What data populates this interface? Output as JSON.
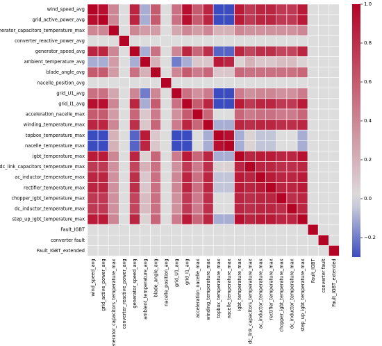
{
  "chart_data": {
    "type": "heatmap",
    "variables": [
      "wind_speed_avg",
      "grid_active_power_avg",
      "generator_capacitors_temperature_max",
      "converter_reactive_power_avg",
      "generator_speed_avg",
      "ambient_temperature_avg",
      "blade_angle_avg",
      "nacelle_position_avg",
      "grid_U1_avg",
      "grid_I1_avg",
      "acceleration_nacelle_max",
      "winding_temperature_max",
      "topbox_temperature_max",
      "nacelle_temperature_max",
      "igbt_temperature_max",
      "dc_link_capacitors_temperature_max",
      "ac_inductor_temperature_max",
      "rectifier_temperature_max",
      "chopper_igbt_temperature_max",
      "dc_inductor_temperature_max",
      "step_up_igbt_temperature_max",
      "Fault_IGBT",
      "converter fault",
      "Fault_IGBT_extended"
    ],
    "matrix": [
      [
        1.0,
        0.95,
        0.4,
        0.0,
        0.85,
        -0.1,
        0.6,
        0.0,
        0.5,
        0.95,
        0.6,
        0.85,
        -0.3,
        -0.3,
        0.9,
        0.75,
        0.85,
        0.85,
        0.75,
        0.75,
        0.9,
        0.0,
        0.0,
        0.0
      ],
      [
        0.95,
        1.0,
        0.4,
        0.0,
        0.85,
        -0.1,
        0.6,
        0.0,
        0.5,
        0.95,
        0.6,
        0.85,
        -0.3,
        -0.3,
        0.9,
        0.75,
        0.85,
        0.85,
        0.75,
        0.75,
        0.9,
        0.0,
        0.0,
        0.0
      ],
      [
        0.4,
        0.4,
        1.0,
        0.0,
        0.4,
        0.3,
        0.3,
        0.0,
        0.25,
        0.4,
        0.3,
        0.4,
        0.2,
        0.2,
        0.4,
        0.35,
        0.35,
        0.35,
        0.35,
        0.35,
        0.4,
        0.0,
        0.0,
        0.0
      ],
      [
        0.0,
        0.0,
        0.0,
        1.0,
        0.0,
        0.0,
        0.0,
        0.0,
        0.0,
        0.0,
        0.0,
        0.0,
        0.0,
        0.0,
        0.0,
        0.0,
        0.0,
        0.0,
        0.0,
        0.0,
        0.0,
        0.0,
        0.0,
        0.0
      ],
      [
        0.85,
        0.85,
        0.4,
        0.0,
        1.0,
        -0.1,
        0.5,
        0.0,
        0.4,
        0.85,
        0.55,
        0.8,
        -0.25,
        -0.25,
        0.85,
        0.7,
        0.8,
        0.8,
        0.7,
        0.7,
        0.85,
        0.0,
        0.0,
        0.0
      ],
      [
        -0.1,
        -0.1,
        0.3,
        0.0,
        -0.1,
        1.0,
        0.2,
        0.0,
        -0.2,
        -0.1,
        0.1,
        0.1,
        0.9,
        0.85,
        0.05,
        0.2,
        0.1,
        0.1,
        0.15,
        0.15,
        0.05,
        0.0,
        0.0,
        0.0
      ],
      [
        0.6,
        0.6,
        0.3,
        0.0,
        0.5,
        0.2,
        1.0,
        0.0,
        0.4,
        0.6,
        0.45,
        0.55,
        0.1,
        0.1,
        0.55,
        0.5,
        0.5,
        0.5,
        0.5,
        0.5,
        0.55,
        0.0,
        0.0,
        0.0
      ],
      [
        0.0,
        0.0,
        0.0,
        0.0,
        0.0,
        0.0,
        0.0,
        1.0,
        0.0,
        0.0,
        0.0,
        0.0,
        0.0,
        0.0,
        0.0,
        0.0,
        0.0,
        0.0,
        0.0,
        0.0,
        0.0,
        0.0,
        0.0,
        0.0
      ],
      [
        0.5,
        0.5,
        0.25,
        0.0,
        0.4,
        -0.2,
        0.4,
        0.0,
        1.0,
        0.5,
        0.35,
        0.45,
        -0.3,
        -0.3,
        0.45,
        0.35,
        0.4,
        0.4,
        0.35,
        0.35,
        0.45,
        0.0,
        0.0,
        0.0
      ],
      [
        0.95,
        0.95,
        0.4,
        0.0,
        0.85,
        -0.1,
        0.6,
        0.0,
        0.5,
        1.0,
        0.6,
        0.85,
        -0.3,
        -0.3,
        0.9,
        0.75,
        0.85,
        0.85,
        0.75,
        0.75,
        0.9,
        0.0,
        0.0,
        0.0
      ],
      [
        0.6,
        0.6,
        0.3,
        0.0,
        0.55,
        0.1,
        0.45,
        0.0,
        0.35,
        0.6,
        1.0,
        0.55,
        0.0,
        0.0,
        0.55,
        0.45,
        0.5,
        0.5,
        0.45,
        0.45,
        0.55,
        0.0,
        0.0,
        0.0
      ],
      [
        0.85,
        0.85,
        0.4,
        0.0,
        0.8,
        0.1,
        0.55,
        0.0,
        0.45,
        0.85,
        0.55,
        1.0,
        -0.1,
        -0.1,
        0.85,
        0.8,
        0.85,
        0.85,
        0.8,
        0.8,
        0.85,
        0.0,
        0.0,
        0.0
      ],
      [
        -0.3,
        -0.3,
        0.2,
        0.0,
        -0.25,
        0.9,
        0.1,
        0.0,
        -0.3,
        -0.3,
        0.0,
        -0.1,
        1.0,
        0.95,
        -0.1,
        0.05,
        -0.05,
        -0.05,
        0.0,
        0.0,
        -0.1,
        0.0,
        0.0,
        0.0
      ],
      [
        -0.3,
        -0.3,
        0.2,
        0.0,
        -0.25,
        0.85,
        0.1,
        0.0,
        -0.3,
        -0.3,
        0.0,
        -0.1,
        0.95,
        1.0,
        -0.1,
        0.05,
        -0.05,
        -0.05,
        0.0,
        0.0,
        -0.1,
        0.0,
        0.0,
        0.0
      ],
      [
        0.9,
        0.9,
        0.4,
        0.0,
        0.85,
        0.05,
        0.55,
        0.0,
        0.45,
        0.9,
        0.55,
        0.85,
        -0.1,
        -0.1,
        1.0,
        0.85,
        0.9,
        0.9,
        0.85,
        0.85,
        0.95,
        0.0,
        0.0,
        0.0
      ],
      [
        0.75,
        0.75,
        0.35,
        0.0,
        0.7,
        0.2,
        0.5,
        0.0,
        0.35,
        0.75,
        0.45,
        0.8,
        0.05,
        0.05,
        0.85,
        1.0,
        0.85,
        0.85,
        0.8,
        0.8,
        0.85,
        0.0,
        0.0,
        0.0
      ],
      [
        0.85,
        0.85,
        0.35,
        0.0,
        0.8,
        0.1,
        0.5,
        0.0,
        0.4,
        0.85,
        0.5,
        0.85,
        -0.05,
        -0.05,
        0.9,
        0.85,
        1.0,
        0.9,
        0.85,
        0.85,
        0.9,
        0.0,
        0.0,
        0.0
      ],
      [
        0.85,
        0.85,
        0.35,
        0.0,
        0.8,
        0.1,
        0.5,
        0.0,
        0.4,
        0.85,
        0.5,
        0.85,
        -0.05,
        -0.05,
        0.9,
        0.85,
        0.9,
        1.0,
        0.85,
        0.85,
        0.9,
        0.0,
        0.0,
        0.0
      ],
      [
        0.75,
        0.75,
        0.35,
        0.0,
        0.7,
        0.15,
        0.5,
        0.0,
        0.35,
        0.75,
        0.45,
        0.8,
        0.0,
        0.0,
        0.85,
        0.8,
        0.85,
        0.85,
        1.0,
        0.8,
        0.85,
        0.0,
        0.0,
        0.0
      ],
      [
        0.75,
        0.75,
        0.35,
        0.0,
        0.7,
        0.15,
        0.5,
        0.0,
        0.35,
        0.75,
        0.45,
        0.8,
        0.0,
        0.0,
        0.85,
        0.8,
        0.85,
        0.85,
        0.8,
        1.0,
        0.85,
        0.0,
        0.0,
        0.0
      ],
      [
        0.9,
        0.9,
        0.4,
        0.0,
        0.85,
        0.05,
        0.55,
        0.0,
        0.45,
        0.9,
        0.55,
        0.85,
        -0.1,
        -0.1,
        0.95,
        0.85,
        0.9,
        0.9,
        0.85,
        0.85,
        1.0,
        0.0,
        0.0,
        0.0
      ],
      [
        0.0,
        0.0,
        0.0,
        0.0,
        0.0,
        0.0,
        0.0,
        0.0,
        0.0,
        0.0,
        0.0,
        0.0,
        0.0,
        0.0,
        0.0,
        0.0,
        0.0,
        0.0,
        0.0,
        0.0,
        0.0,
        1.0,
        0.0,
        0.0
      ],
      [
        0.0,
        0.0,
        0.0,
        0.0,
        0.0,
        0.0,
        0.0,
        0.0,
        0.0,
        0.0,
        0.0,
        0.0,
        0.0,
        0.0,
        0.0,
        0.0,
        0.0,
        0.0,
        0.0,
        0.0,
        0.0,
        0.0,
        1.0,
        0.0
      ],
      [
        0.0,
        0.0,
        0.0,
        0.0,
        0.0,
        0.0,
        0.0,
        0.0,
        0.0,
        0.0,
        0.0,
        0.0,
        0.0,
        0.0,
        0.0,
        0.0,
        0.0,
        0.0,
        0.0,
        0.0,
        0.0,
        0.0,
        0.0,
        1.0
      ]
    ],
    "colormap": "coolwarm",
    "color_low": "#3b4cc0",
    "color_mid": "#dddddd",
    "color_high": "#b40426",
    "vmin": -0.3,
    "vmax": 1.0,
    "colorbar_ticks": [
      1.0,
      0.8,
      0.6,
      0.4,
      0.2,
      0.0,
      -0.2
    ],
    "colorbar_tick_labels": [
      "1.0",
      "0.8",
      "0.6",
      "0.4",
      "0.2",
      "0.0",
      "−0.2"
    ],
    "title": "",
    "xlabel": "",
    "ylabel": "",
    "grid": true,
    "colorbar_position": "right"
  }
}
